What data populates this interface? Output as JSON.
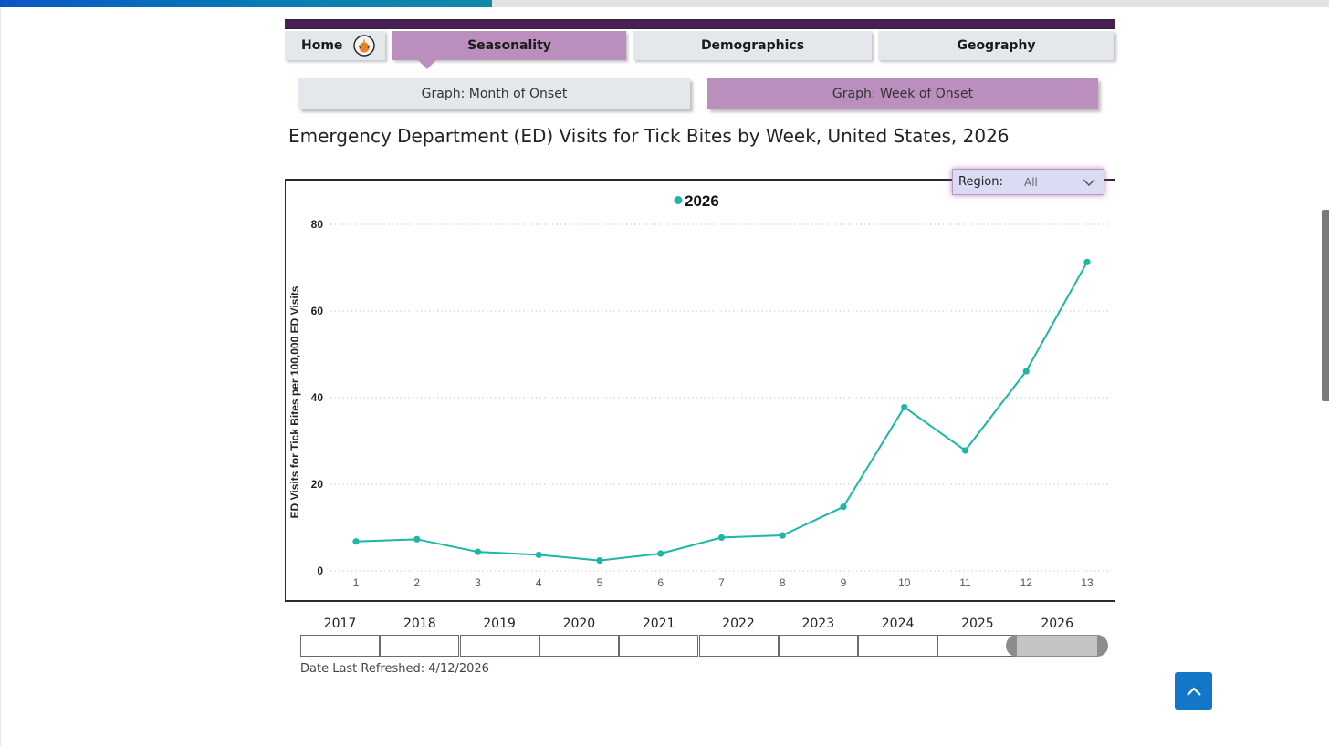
{
  "nav": {
    "tabs": [
      {
        "label": "Home",
        "active": false
      },
      {
        "label": "Seasonality",
        "active": true
      },
      {
        "label": "Demographics",
        "active": false
      },
      {
        "label": "Geography",
        "active": false
      }
    ],
    "subtabs": [
      {
        "label": "Graph: Month of Onset",
        "active": false
      },
      {
        "label": "Graph: Week of Onset",
        "active": true
      }
    ]
  },
  "page_title": "Emergency Department (ED) Visits for Tick Bites by Week, United States, 2026",
  "region_filter": {
    "label": "Region:",
    "value": "All"
  },
  "year_slider": {
    "years": [
      "2017",
      "2018",
      "2019",
      "2020",
      "2021",
      "2022",
      "2023",
      "2024",
      "2025",
      "2026"
    ],
    "selected": "2026"
  },
  "date_refreshed": "Date Last Refreshed: 4/12/2026",
  "colors": {
    "accent_purple": "#ba8fbe",
    "header_band": "#4a1f56",
    "series_teal": "#1db7a8",
    "back_to_top": "#1377c9"
  },
  "icons": {
    "home": "home-logo-icon",
    "region_dropdown": "chevron-down-icon",
    "back_to_top": "chevron-up-icon"
  },
  "chart_data": {
    "type": "line",
    "title": "",
    "xlabel": "",
    "ylabel": "ED Visits for Tick Bites per 100,000 ED Visits",
    "categories": [
      "1",
      "2",
      "3",
      "4",
      "5",
      "6",
      "7",
      "8",
      "9",
      "10",
      "11",
      "12",
      "13"
    ],
    "yticks": [
      "0",
      "20",
      "40",
      "60",
      "80"
    ],
    "ylim": [
      0,
      80
    ],
    "grid": true,
    "legend_position": "top-center",
    "series": [
      {
        "name": "2026",
        "color": "#1db7a8",
        "values": [
          6.8,
          7.3,
          4.4,
          3.7,
          2.4,
          4.0,
          7.7,
          8.2,
          14.8,
          37.8,
          27.8,
          46.1,
          71.3
        ]
      }
    ]
  }
}
